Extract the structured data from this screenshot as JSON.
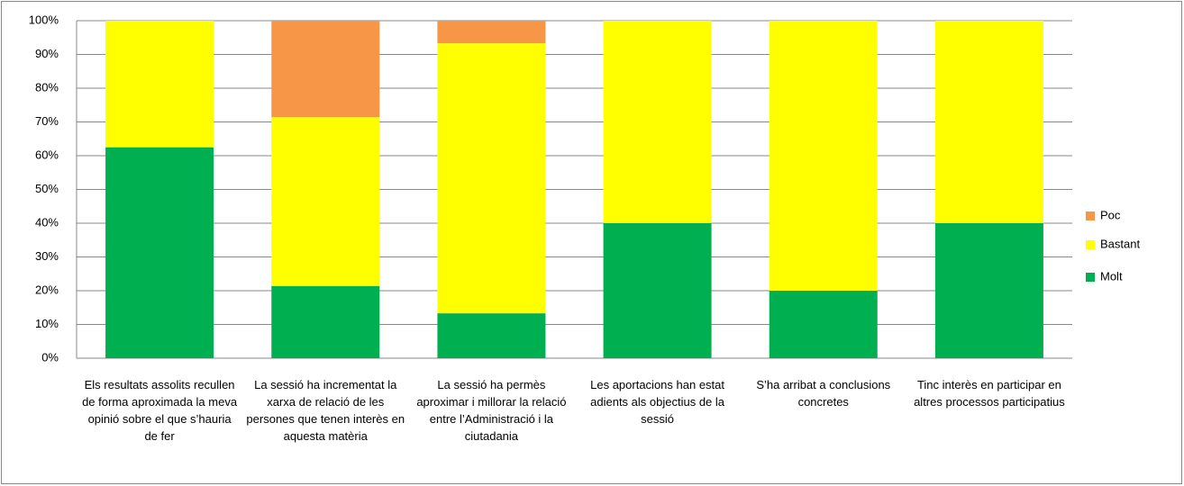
{
  "chart_data": {
    "type": "stacked_bar_100",
    "categories": [
      "Els resultats assolits recullen de forma aproximada la meva opinió sobre el que s’hauria de fer",
      "La sessió ha incrementat la xarxa de relació de les persones que tenen interès en aquesta matèria",
      "La sessió ha permès aproximar i millorar la relació entre l’Administració i la ciutadania",
      "Les aportacions han estat adients als objectius de la sessió",
      "S’ha arribat a conclusions concretes",
      "Tinc interès en participar en altres processos participatius"
    ],
    "series": [
      {
        "name": "Molt",
        "color": "#00b050",
        "values": [
          62.5,
          21.4,
          13.3,
          40,
          20,
          40
        ]
      },
      {
        "name": "Bastant",
        "color": "#ffff00",
        "values": [
          37.5,
          50,
          80,
          60,
          80,
          60
        ]
      },
      {
        "name": "Poc",
        "color": "#f79646",
        "values": [
          0,
          28.6,
          6.7,
          0,
          0,
          0
        ]
      }
    ],
    "ylim": [
      0,
      100
    ],
    "yticks": [
      {
        "value": 0,
        "label": "0%"
      },
      {
        "value": 10,
        "label": "10%"
      },
      {
        "value": 20,
        "label": "20%"
      },
      {
        "value": 30,
        "label": "30%"
      },
      {
        "value": 40,
        "label": "40%"
      },
      {
        "value": 50,
        "label": "50%"
      },
      {
        "value": 60,
        "label": "60%"
      },
      {
        "value": 70,
        "label": "70%"
      },
      {
        "value": 80,
        "label": "80%"
      },
      {
        "value": 90,
        "label": "90%"
      },
      {
        "value": 100,
        "label": "100%"
      }
    ],
    "grid": true,
    "legend": "right"
  }
}
